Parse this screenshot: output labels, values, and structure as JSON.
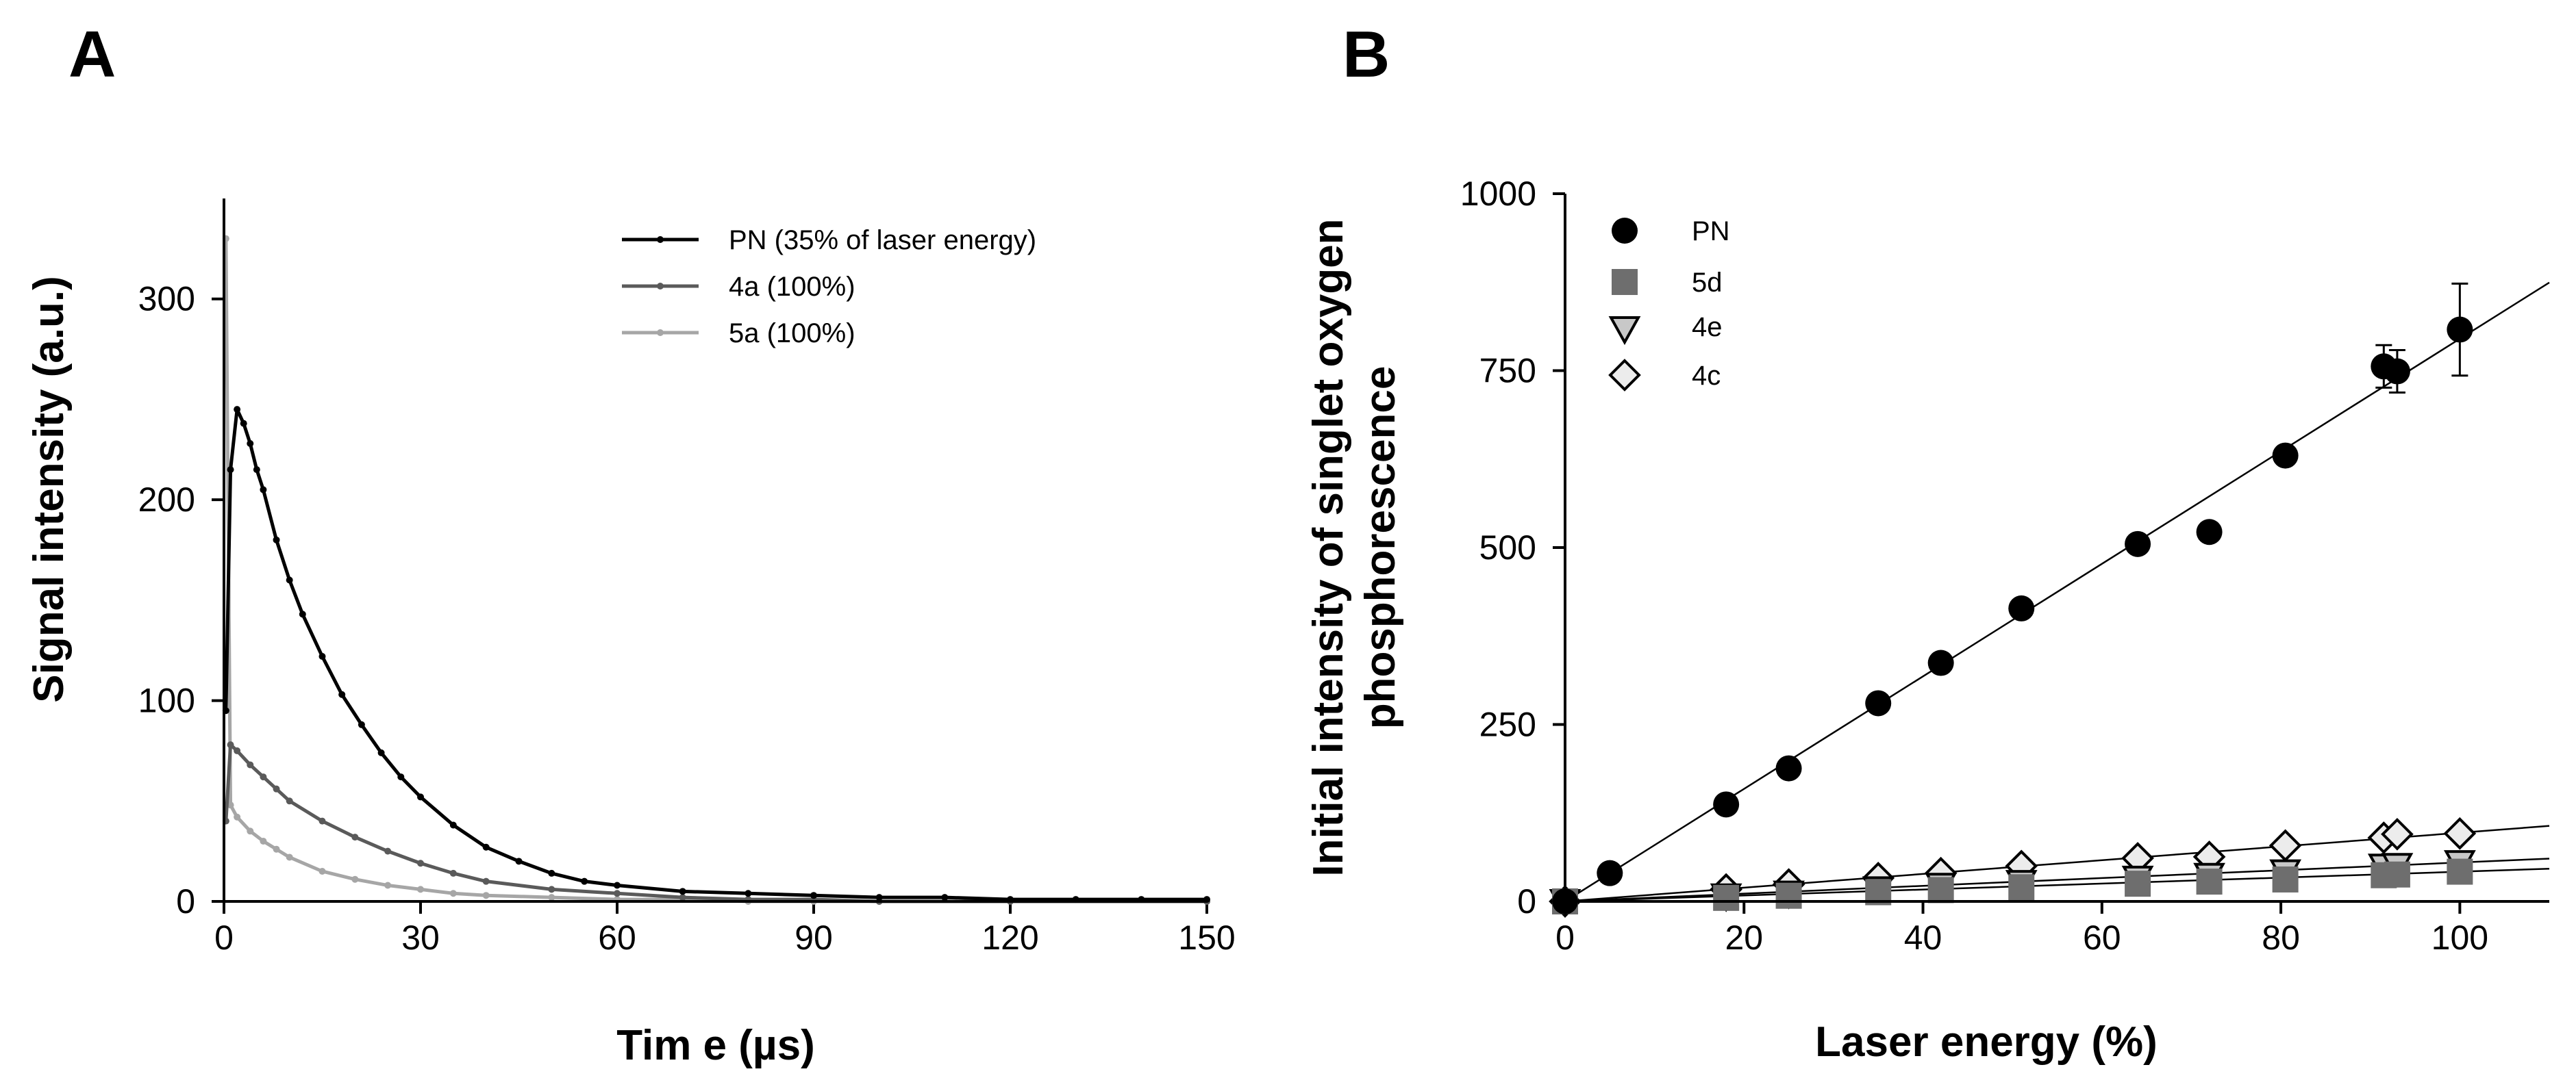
{
  "panels": [
    {
      "label": "A",
      "chart_data": {
        "type": "line",
        "title": "",
        "xlabel": "Tim e (µs)",
        "ylabel": "Signal intensity (a.u.)",
        "xlim": [
          0,
          150
        ],
        "ylim": [
          0,
          350
        ],
        "xticks": [
          0,
          30,
          60,
          90,
          120,
          150
        ],
        "yticks": [
          0,
          100,
          200,
          300
        ],
        "legend_position": "top-right",
        "series": [
          {
            "name": "PN (35% of laser energy)",
            "color": "#000000",
            "x": [
              0.3,
              1,
              2,
              3,
              4,
              5,
              6,
              8,
              10,
              12,
              15,
              18,
              21,
              24,
              27,
              30,
              35,
              40,
              45,
              50,
              55,
              60,
              70,
              80,
              90,
              100,
              110,
              120,
              130,
              140,
              150
            ],
            "y": [
              95,
              215,
              245,
              238,
              228,
              215,
              205,
              180,
              160,
              143,
              122,
              103,
              88,
              74,
              62,
              52,
              38,
              27,
              20,
              14,
              10,
              8,
              5,
              4,
              3,
              2,
              2,
              1,
              1,
              1,
              1
            ]
          },
          {
            "name": "4a (100%)",
            "color": "#5a5a5a",
            "x": [
              0.3,
              1,
              2,
              4,
              6,
              8,
              10,
              15,
              20,
              25,
              30,
              35,
              40,
              50,
              60,
              70,
              80,
              90,
              100,
              120,
              150
            ],
            "y": [
              40,
              78,
              75,
              68,
              62,
              56,
              50,
              40,
              32,
              25,
              19,
              14,
              10,
              6,
              4,
              2,
              1,
              1,
              0,
              0,
              0
            ]
          },
          {
            "name": "5a (100%)",
            "color": "#a6a6a6",
            "x": [
              0.3,
              1,
              2,
              4,
              6,
              8,
              10,
              15,
              20,
              25,
              30,
              35,
              40,
              50,
              60,
              70,
              80,
              90,
              100,
              120,
              150
            ],
            "y": [
              330,
              48,
              42,
              35,
              30,
              26,
              22,
              15,
              11,
              8,
              6,
              4,
              3,
              2,
              1,
              1,
              0,
              0,
              0,
              0,
              0
            ]
          }
        ]
      }
    },
    {
      "label": "B",
      "chart_data": {
        "type": "scatter",
        "title": "",
        "xlabel": "Laser energy (%)",
        "ylabel_line1": "Initial intensity of singlet oxygen",
        "ylabel_line2": "phosphorescence",
        "xlim": [
          0,
          110
        ],
        "ylim": [
          0,
          1000
        ],
        "xticks": [
          0,
          20,
          40,
          60,
          80,
          100
        ],
        "yticks": [
          0,
          250,
          500,
          750,
          1000
        ],
        "legend_position": "top-left",
        "series": [
          {
            "name": "PN",
            "marker": "circle",
            "color": "#000000",
            "x": [
              0,
              5,
              18,
              25,
              35,
              42,
              51,
              64,
              72,
              80.5,
              91.5,
              93,
              100
            ],
            "y": [
              0,
              40,
              137,
              188,
              280,
              337,
              414,
              505,
              522,
              630,
              756,
              749,
              808
            ],
            "err": [
              0,
              0,
              0,
              0,
              0,
              0,
              0,
              0,
              0,
              0,
              30,
              30,
              65
            ],
            "fit_slope": 7.95
          },
          {
            "name": "5d",
            "marker": "square",
            "color": "#6e6e6e",
            "x": [
              0,
              18,
              25,
              35,
              42,
              51,
              64,
              72,
              80.5,
              91.5,
              93,
              100
            ],
            "y": [
              0,
              5,
              8,
              13,
              16,
              20,
              25,
              28,
              31,
              37,
              38,
              42
            ],
            "err": [],
            "fit_slope": 0.42
          },
          {
            "name": "4e",
            "marker": "triangle-down",
            "color": "#c8c8c8",
            "x": [
              0,
              18,
              25,
              35,
              42,
              51,
              64,
              72,
              80.5,
              91.5,
              93,
              100
            ],
            "y": [
              0,
              8,
              12,
              18,
              23,
              27,
              33,
              37,
              42,
              50,
              51,
              55
            ],
            "err": [],
            "fit_slope": 0.55
          },
          {
            "name": "4c",
            "marker": "diamond",
            "color": "#ececec",
            "x": [
              0,
              18,
              25,
              35,
              42,
              51,
              64,
              72,
              80.5,
              91.5,
              93,
              100
            ],
            "y": [
              0,
              17,
              24,
              33,
              40,
              50,
              61,
              63,
              79,
              90,
              95,
              96
            ],
            "err": [],
            "fit_slope": 0.97
          }
        ]
      }
    }
  ]
}
